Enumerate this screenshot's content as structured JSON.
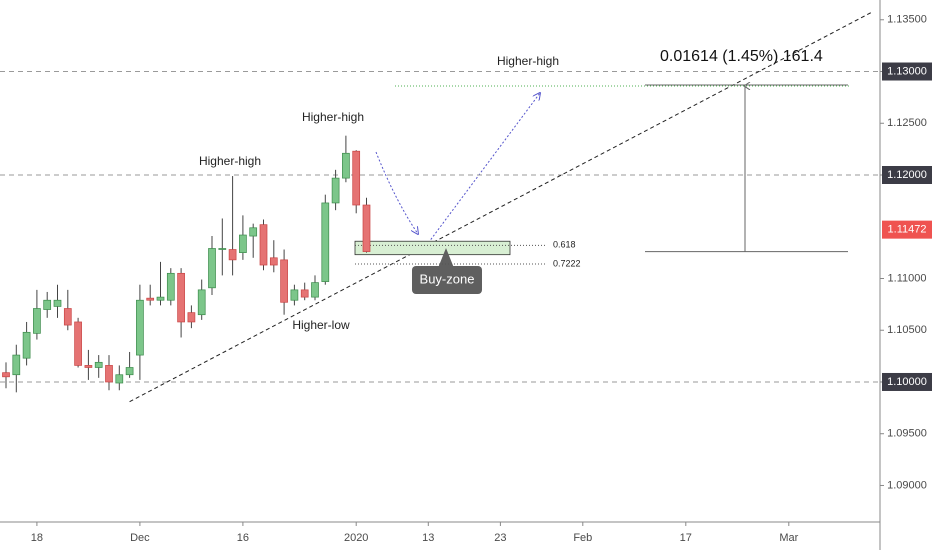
{
  "chart_data": {
    "type": "candlestick",
    "categories": [
      null,
      null,
      null,
      "18",
      null,
      null,
      null,
      null,
      null,
      null,
      null,
      null,
      null,
      "Dec",
      null,
      null,
      null,
      null,
      null,
      null,
      null,
      null,
      null,
      "16",
      null,
      null,
      null,
      null,
      null,
      null,
      null,
      null,
      null,
      null,
      "2020",
      null,
      null,
      null,
      null,
      null,
      null,
      "13",
      null,
      null,
      null,
      null,
      null,
      null,
      "23",
      null,
      null,
      null,
      null,
      null,
      null,
      null,
      "Feb",
      null,
      null,
      null,
      null,
      null,
      null,
      null,
      null,
      null,
      "17",
      null,
      null,
      null,
      null,
      null,
      null,
      null,
      null,
      null,
      "Mar",
      null,
      null,
      null,
      null,
      null,
      null,
      null,
      null
    ],
    "open": [
      1.1009,
      1.1007,
      1.1023,
      1.1047,
      1.107,
      1.1073,
      1.1071,
      1.1058,
      1.1016,
      1.1014,
      1.1016,
      1.0999,
      1.1007,
      1.1026,
      1.1081,
      1.1079,
      1.1079,
      1.1105,
      1.1067,
      1.1065,
      1.1091,
      1.1128,
      1.1128,
      1.1125,
      1.1141,
      1.1152,
      1.112,
      1.1118,
      1.1079,
      1.1089,
      1.1082,
      1.1097,
      1.1173,
      1.1197,
      1.1223,
      1.1171,
      null,
      null,
      null,
      null,
      null,
      null,
      null,
      null,
      null,
      null,
      null,
      null,
      null,
      null,
      null,
      null,
      null,
      null,
      null,
      null,
      null,
      null,
      null,
      null,
      null,
      null,
      null,
      null,
      null,
      null,
      null,
      null,
      null,
      null,
      null,
      null,
      null,
      null,
      null,
      null,
      null,
      null,
      null,
      null,
      null,
      null,
      null,
      null,
      null
    ],
    "high": [
      1.1019,
      1.1036,
      1.1058,
      1.1089,
      1.1087,
      1.1094,
      1.1089,
      1.1062,
      1.1031,
      1.1026,
      1.1026,
      1.1016,
      1.1029,
      1.1094,
      1.1094,
      1.1116,
      1.111,
      1.111,
      1.1074,
      1.1099,
      1.1141,
      1.1158,
      1.1199,
      1.1161,
      1.1153,
      1.1157,
      1.1137,
      1.1128,
      1.1094,
      1.1096,
      1.1103,
      1.1181,
      1.1205,
      1.1238,
      1.1224,
      1.1178,
      null,
      null,
      null,
      null,
      null,
      null,
      null,
      null,
      null,
      null,
      null,
      null,
      null,
      null,
      null,
      null,
      null,
      null,
      null,
      null,
      null,
      null,
      null,
      null,
      null,
      null,
      null,
      null,
      null,
      null,
      null,
      null,
      null,
      null,
      null,
      null,
      null,
      null,
      null,
      null,
      null,
      null,
      null,
      null,
      null,
      null,
      null,
      null,
      null
    ],
    "low": [
      1.0994,
      1.099,
      1.1016,
      1.1041,
      1.1062,
      1.1062,
      1.105,
      1.1014,
      1.1002,
      1.1004,
      1.0992,
      1.0992,
      1.1004,
      1.1002,
      1.1074,
      1.1074,
      1.1074,
      1.1043,
      1.1052,
      1.106,
      1.1084,
      1.1103,
      1.1103,
      1.1118,
      1.112,
      1.1108,
      1.1106,
      1.1065,
      1.1074,
      1.1079,
      1.1079,
      1.1094,
      1.1166,
      1.1193,
      1.1163,
      1.1125,
      null,
      null,
      null,
      null,
      null,
      null,
      null,
      null,
      null,
      null,
      null,
      null,
      null,
      null,
      null,
      null,
      null,
      null,
      null,
      null,
      null,
      null,
      null,
      null,
      null,
      null,
      null,
      null,
      null,
      null,
      null,
      null,
      null,
      null,
      null,
      null,
      null,
      null,
      null,
      null,
      null,
      null,
      null,
      null,
      null,
      null,
      null,
      null,
      null
    ],
    "close": [
      1.1005,
      1.1026,
      1.1048,
      1.1071,
      1.1079,
      1.1079,
      1.1055,
      1.1016,
      1.1014,
      1.1019,
      1.1,
      1.1007,
      1.1014,
      1.1079,
      1.1079,
      1.1082,
      1.1105,
      1.1058,
      1.1058,
      1.1089,
      1.1129,
      1.1129,
      1.1118,
      1.1142,
      1.1149,
      1.1113,
      1.1113,
      1.1077,
      1.1089,
      1.1082,
      1.1096,
      1.1173,
      1.1197,
      1.1221,
      1.1171,
      1.1126,
      null,
      null,
      null,
      null,
      null,
      null,
      null,
      null,
      null,
      null,
      null,
      null,
      null,
      null,
      null,
      null,
      null,
      null,
      null,
      null,
      null,
      null,
      null,
      null,
      null,
      null,
      null,
      null,
      null,
      null,
      null,
      null,
      null,
      null,
      null,
      null,
      null,
      null,
      null,
      null,
      null,
      null,
      null,
      null,
      null,
      null,
      null,
      null,
      null
    ],
    "up_color": "#7cc68a",
    "down_color": "#e57373",
    "ylim": [
      1.08647,
      1.13691
    ],
    "yticks": [
      {
        "value": 1.09,
        "label": "1.09000"
      },
      {
        "value": 1.095,
        "label": "1.09500"
      },
      {
        "value": 1.1,
        "label": "1.10000"
      },
      {
        "value": 1.105,
        "label": "1.10500"
      },
      {
        "value": 1.11,
        "label": "1.11000"
      },
      {
        "value": 1.12,
        "label": "1.12000"
      },
      {
        "value": 1.125,
        "label": "1.12500"
      },
      {
        "value": 1.13,
        "label": "1.13000"
      },
      {
        "value": 1.135,
        "label": "1.13500"
      }
    ],
    "levels": [
      1.1,
      1.12,
      1.13
    ],
    "last_price": {
      "value": 1.11472,
      "label": "1.11472"
    },
    "trendline": {
      "x": [
        12,
        84
      ],
      "y": [
        1.0981,
        1.1357
      ]
    },
    "target_line": 1.1286,
    "fib_levels": [
      {
        "value": 1.1132,
        "label": "0.618"
      },
      {
        "value": 1.1114,
        "label": "0.7222"
      }
    ],
    "buy_zone": {
      "label": "Buy-zone",
      "range": [
        1.1123,
        1.1136
      ]
    },
    "measure": {
      "label": "0.01614 (1.45%) 161.4",
      "range": [
        1.1126,
        1.1287
      ]
    },
    "annotations": [
      "Higher-high",
      "Higher-high",
      "Higher-high",
      "Higher-low"
    ]
  }
}
